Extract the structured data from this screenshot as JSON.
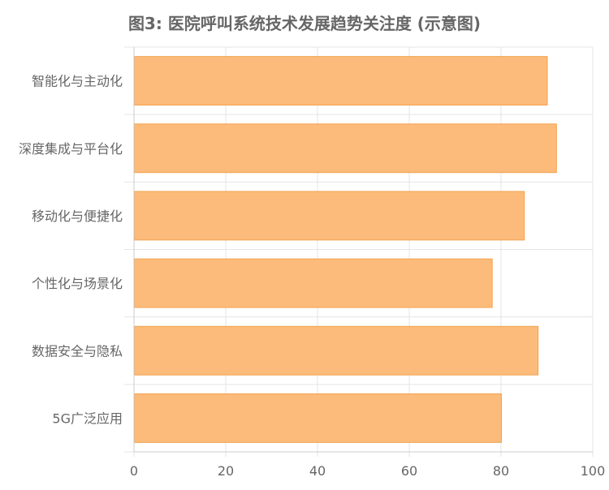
{
  "chart_data": {
    "type": "bar",
    "orientation": "horizontal",
    "title": "图3: 医院呼叫系统技术发展趋势关注度 (示意图)",
    "categories": [
      "智能化与主动化",
      "深度集成与平台化",
      "移动化与便捷化",
      "个性化与场景化",
      "数据安全与隐私",
      "5G广泛应用"
    ],
    "values": [
      90,
      92,
      85,
      78,
      88,
      80
    ],
    "x_ticks": [
      "0",
      "20",
      "40",
      "60",
      "80",
      "100"
    ],
    "xlim": [
      0,
      100
    ],
    "xlabel": "",
    "ylabel": "",
    "grid": true,
    "legend": "none",
    "colors": {
      "bar_fill": "#fcbb7a",
      "bar_stroke": "#f3a24e",
      "text": "#666666",
      "grid": "#e5e5e5"
    }
  }
}
